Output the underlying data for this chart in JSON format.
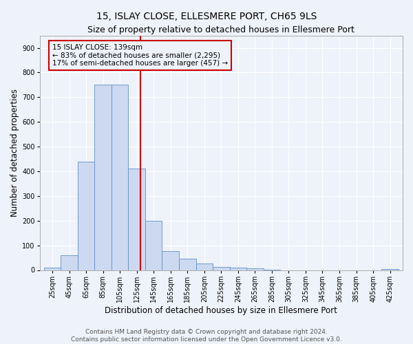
{
  "title": "15, ISLAY CLOSE, ELLESMERE PORT, CH65 9LS",
  "subtitle": "Size of property relative to detached houses in Ellesmere Port",
  "xlabel": "Distribution of detached houses by size in Ellesmere Port",
  "ylabel": "Number of detached properties",
  "bar_edges": [
    25,
    45,
    65,
    85,
    105,
    125,
    145,
    165,
    185,
    205,
    225,
    245,
    265,
    285,
    305,
    325,
    345,
    365,
    385,
    405,
    425,
    445
  ],
  "bar_heights": [
    10,
    60,
    440,
    750,
    750,
    410,
    200,
    78,
    45,
    27,
    12,
    10,
    7,
    2,
    0,
    0,
    0,
    0,
    0,
    0,
    5
  ],
  "bar_color": "#ccd9f0",
  "bar_edge_color": "#6090c8",
  "property_line_x": 139,
  "property_line_color": "#cc0000",
  "annotation_line1": "15 ISLAY CLOSE: 139sqm",
  "annotation_line2": "← 83% of detached houses are smaller (2,295)",
  "annotation_line3": "17% of semi-detached houses are larger (457) →",
  "annotation_box_color": "#cc0000",
  "ylim": [
    0,
    950
  ],
  "yticks": [
    0,
    100,
    200,
    300,
    400,
    500,
    600,
    700,
    800,
    900
  ],
  "xtick_labels": [
    "25sqm",
    "45sqm",
    "65sqm",
    "85sqm",
    "105sqm",
    "125sqm",
    "145sqm",
    "165sqm",
    "185sqm",
    "205sqm",
    "225sqm",
    "245sqm",
    "265sqm",
    "285sqm",
    "305sqm",
    "325sqm",
    "345sqm",
    "365sqm",
    "385sqm",
    "405sqm",
    "425sqm"
  ],
  "background_color": "#eef2fa",
  "grid_color": "#ffffff",
  "footer_text": "Contains HM Land Registry data © Crown copyright and database right 2024.\nContains public sector information licensed under the Open Government Licence v3.0.",
  "title_fontsize": 10,
  "subtitle_fontsize": 9,
  "xlabel_fontsize": 8.5,
  "ylabel_fontsize": 8.5,
  "tick_fontsize": 7,
  "annotation_fontsize": 7.5,
  "footer_fontsize": 6.5
}
